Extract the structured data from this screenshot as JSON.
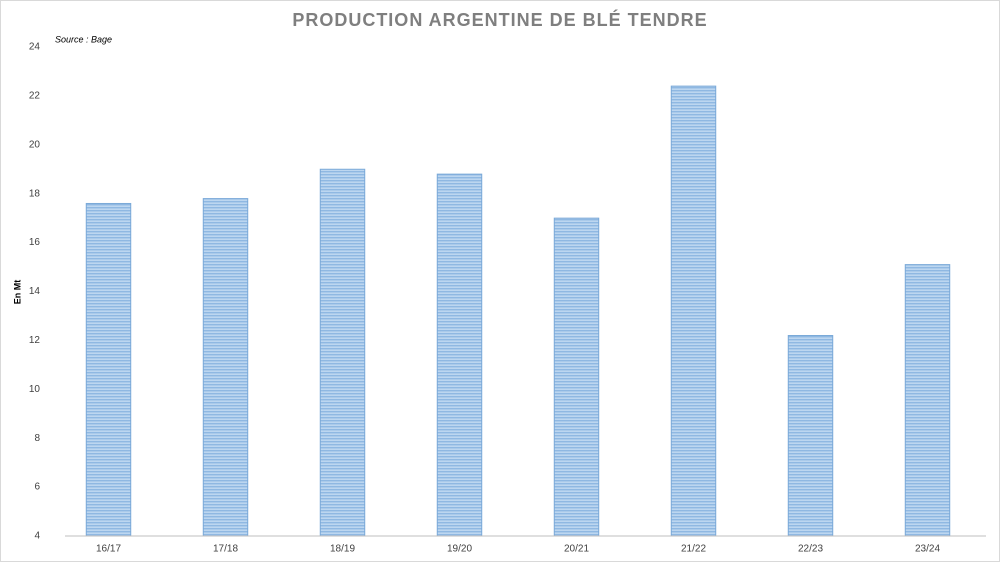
{
  "chart_data": {
    "type": "bar",
    "title": "PRODUCTION ARGENTINE DE BLÉ TENDRE",
    "annotation": "Source : Bage",
    "y_label": "En Mt",
    "categories": [
      "16/17",
      "17/18",
      "18/19",
      "19/20",
      "20/21",
      "21/22",
      "22/23",
      "23/24"
    ],
    "values": [
      17.6,
      17.8,
      19.0,
      18.8,
      17.0,
      22.4,
      12.2,
      15.1
    ],
    "color": "#9dc3e6",
    "ylim": [
      4,
      24
    ],
    "yticks": [
      4,
      6,
      8,
      10,
      12,
      14,
      16,
      18,
      20,
      22,
      24
    ],
    "grid": false
  }
}
